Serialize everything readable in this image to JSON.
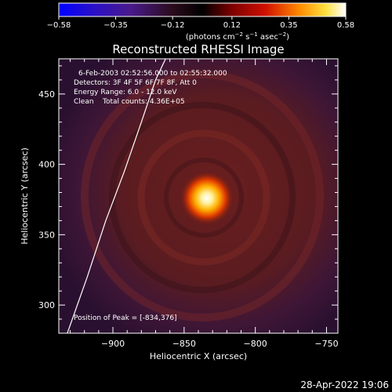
{
  "chart_data": {
    "type": "heatmap",
    "title": "Reconstructed RHESSI Image",
    "xlabel": "Heliocentric X (arcsec)",
    "ylabel": "Heliocentric Y (arcsec)",
    "xlim": [
      -938,
      -742
    ],
    "ylim": [
      280,
      475
    ],
    "x_ticks": [
      -900,
      -850,
      -800,
      -750
    ],
    "y_ticks": [
      300,
      350,
      400,
      450
    ],
    "x_tick_labels": [
      "−900",
      "−850",
      "−800",
      "−750"
    ],
    "y_tick_labels": [
      "300",
      "350",
      "400",
      "450"
    ],
    "colorbar": {
      "range": [
        -0.58,
        0.58
      ],
      "ticks": [
        -0.58,
        -0.35,
        -0.12,
        0.12,
        0.35,
        0.58
      ],
      "tick_labels": [
        "−0.58",
        "−0.35",
        "−0.12",
        "0.12",
        "0.35",
        "0.58"
      ],
      "units_prefix": "(photons cm",
      "units_sup1": "−2",
      "units_mid": " s",
      "units_sup2": "−1",
      "units_mid2": " asec",
      "units_sup3": "−2",
      "units_suffix": ")"
    },
    "peak": {
      "x": -834,
      "y": 376
    },
    "limb_curve": [
      {
        "x": -932,
        "y": 280
      },
      {
        "x": -918,
        "y": 320
      },
      {
        "x": -905,
        "y": 360
      },
      {
        "x": -892,
        "y": 395
      },
      {
        "x": -880,
        "y": 430
      },
      {
        "x": -870,
        "y": 460
      },
      {
        "x": -863,
        "y": 475
      }
    ],
    "annotations": [
      "6-Feb-2003 02:52:56.000 to 02:55:32.000",
      "Detectors: 3F 4F 5F 6F 7F 8F, Att 0",
      "Energy Range: 6.0 - 12.0 keV",
      "Clean    Total counts: 4.36E+05"
    ],
    "peak_label": "Position of Peak = [-834,376]"
  },
  "footer": {
    "timestamp": "28-Apr-2022 19:06"
  }
}
